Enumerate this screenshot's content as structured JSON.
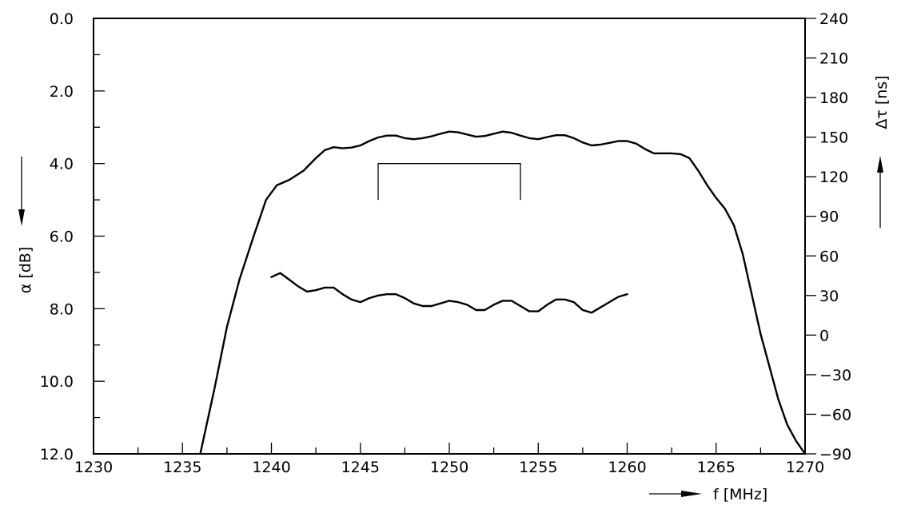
{
  "chart_data": {
    "type": "line",
    "title": "",
    "xlabel": "f  [MHz]",
    "ylabel_left": "α  [dB]",
    "ylabel_right": "Δτ  [ns]",
    "xlim": [
      1230,
      1270
    ],
    "ylim_left": [
      0.0,
      12.0
    ],
    "ylim_left_inverted": true,
    "ylim_right": [
      -90,
      240
    ],
    "grid": false,
    "x_ticks": [
      "1230",
      "1235",
      "1240",
      "1245",
      "1250",
      "1255",
      "1260",
      "1265",
      "1270"
    ],
    "x_tick_values": [
      1230,
      1235,
      1240,
      1245,
      1250,
      1255,
      1260,
      1265,
      1270
    ],
    "y_left_ticks": [
      "0.0",
      "2.0",
      "4.0",
      "6.0",
      "8.0",
      "10.0",
      "12.0"
    ],
    "y_left_tick_values": [
      0,
      2,
      4,
      6,
      8,
      10,
      12
    ],
    "y_right_ticks": [
      "240",
      "210",
      "180",
      "150",
      "120",
      "90",
      "60",
      "30",
      "0",
      "−30",
      "−60",
      "−90"
    ],
    "y_right_tick_values": [
      240,
      210,
      180,
      150,
      120,
      90,
      60,
      30,
      0,
      -30,
      -60,
      -90
    ],
    "series": [
      {
        "axis": "left",
        "x": [
          1236.0,
          1236.8,
          1237.5,
          1238.2,
          1239.0,
          1239.7,
          1240.3,
          1241.0,
          1241.8,
          1242.5,
          1243.0,
          1243.5,
          1244.0,
          1244.5,
          1245.0,
          1245.5,
          1246.0,
          1246.5,
          1247.0,
          1247.5,
          1248.0,
          1248.5,
          1249.0,
          1249.5,
          1250.0,
          1250.5,
          1251.0,
          1251.5,
          1252.0,
          1252.5,
          1253.0,
          1253.5,
          1254.0,
          1254.5,
          1255.0,
          1255.5,
          1256.0,
          1256.5,
          1257.0,
          1257.5,
          1258.0,
          1258.5,
          1259.0,
          1259.5,
          1260.0,
          1260.5,
          1261.0,
          1261.5,
          1262.0,
          1262.5,
          1263.0,
          1263.5,
          1264.0,
          1264.5,
          1265.0,
          1265.5,
          1266.0,
          1266.5,
          1267.0,
          1267.5,
          1268.0,
          1268.5,
          1269.0,
          1269.5,
          1270.0
        ],
        "y": [
          12.0,
          10.2,
          8.5,
          7.2,
          6.0,
          5.0,
          4.6,
          4.45,
          4.2,
          3.85,
          3.63,
          3.55,
          3.58,
          3.56,
          3.5,
          3.38,
          3.28,
          3.23,
          3.23,
          3.3,
          3.33,
          3.3,
          3.25,
          3.18,
          3.12,
          3.14,
          3.2,
          3.26,
          3.24,
          3.18,
          3.12,
          3.15,
          3.23,
          3.3,
          3.33,
          3.27,
          3.22,
          3.22,
          3.3,
          3.42,
          3.5,
          3.48,
          3.43,
          3.38,
          3.38,
          3.45,
          3.6,
          3.72,
          3.72,
          3.72,
          3.74,
          3.85,
          4.2,
          4.6,
          4.95,
          5.25,
          5.7,
          6.5,
          7.6,
          8.7,
          9.6,
          10.5,
          11.2,
          11.65,
          12.0
        ],
        "name": ""
      },
      {
        "axis": "right",
        "x": [
          1240.0,
          1240.5,
          1241.0,
          1241.5,
          1242.0,
          1242.5,
          1243.0,
          1243.5,
          1244.0,
          1244.5,
          1245.0,
          1245.5,
          1246.0,
          1246.5,
          1247.0,
          1247.5,
          1248.0,
          1248.5,
          1249.0,
          1249.5,
          1250.0,
          1250.5,
          1251.0,
          1251.5,
          1252.0,
          1252.5,
          1253.0,
          1253.5,
          1254.0,
          1254.5,
          1255.0,
          1255.5,
          1256.0,
          1256.5,
          1257.0,
          1257.5,
          1258.0,
          1258.5,
          1259.0,
          1259.5,
          1260.0
        ],
        "y": [
          44,
          47,
          42,
          37,
          33,
          34,
          36,
          36,
          31,
          27,
          25,
          28,
          30,
          31,
          31,
          28,
          24,
          22,
          22,
          24,
          26,
          25,
          23,
          19,
          19,
          23,
          26,
          26,
          22,
          18,
          18,
          23,
          27,
          27,
          25,
          19,
          17,
          21,
          25,
          29,
          31
        ],
        "name": ""
      }
    ],
    "annotation": {
      "type": "bracket",
      "x_start": 1246,
      "x_end": 1254,
      "y_top": 4.0,
      "y_bottom": 5.0,
      "axis": "left"
    }
  }
}
